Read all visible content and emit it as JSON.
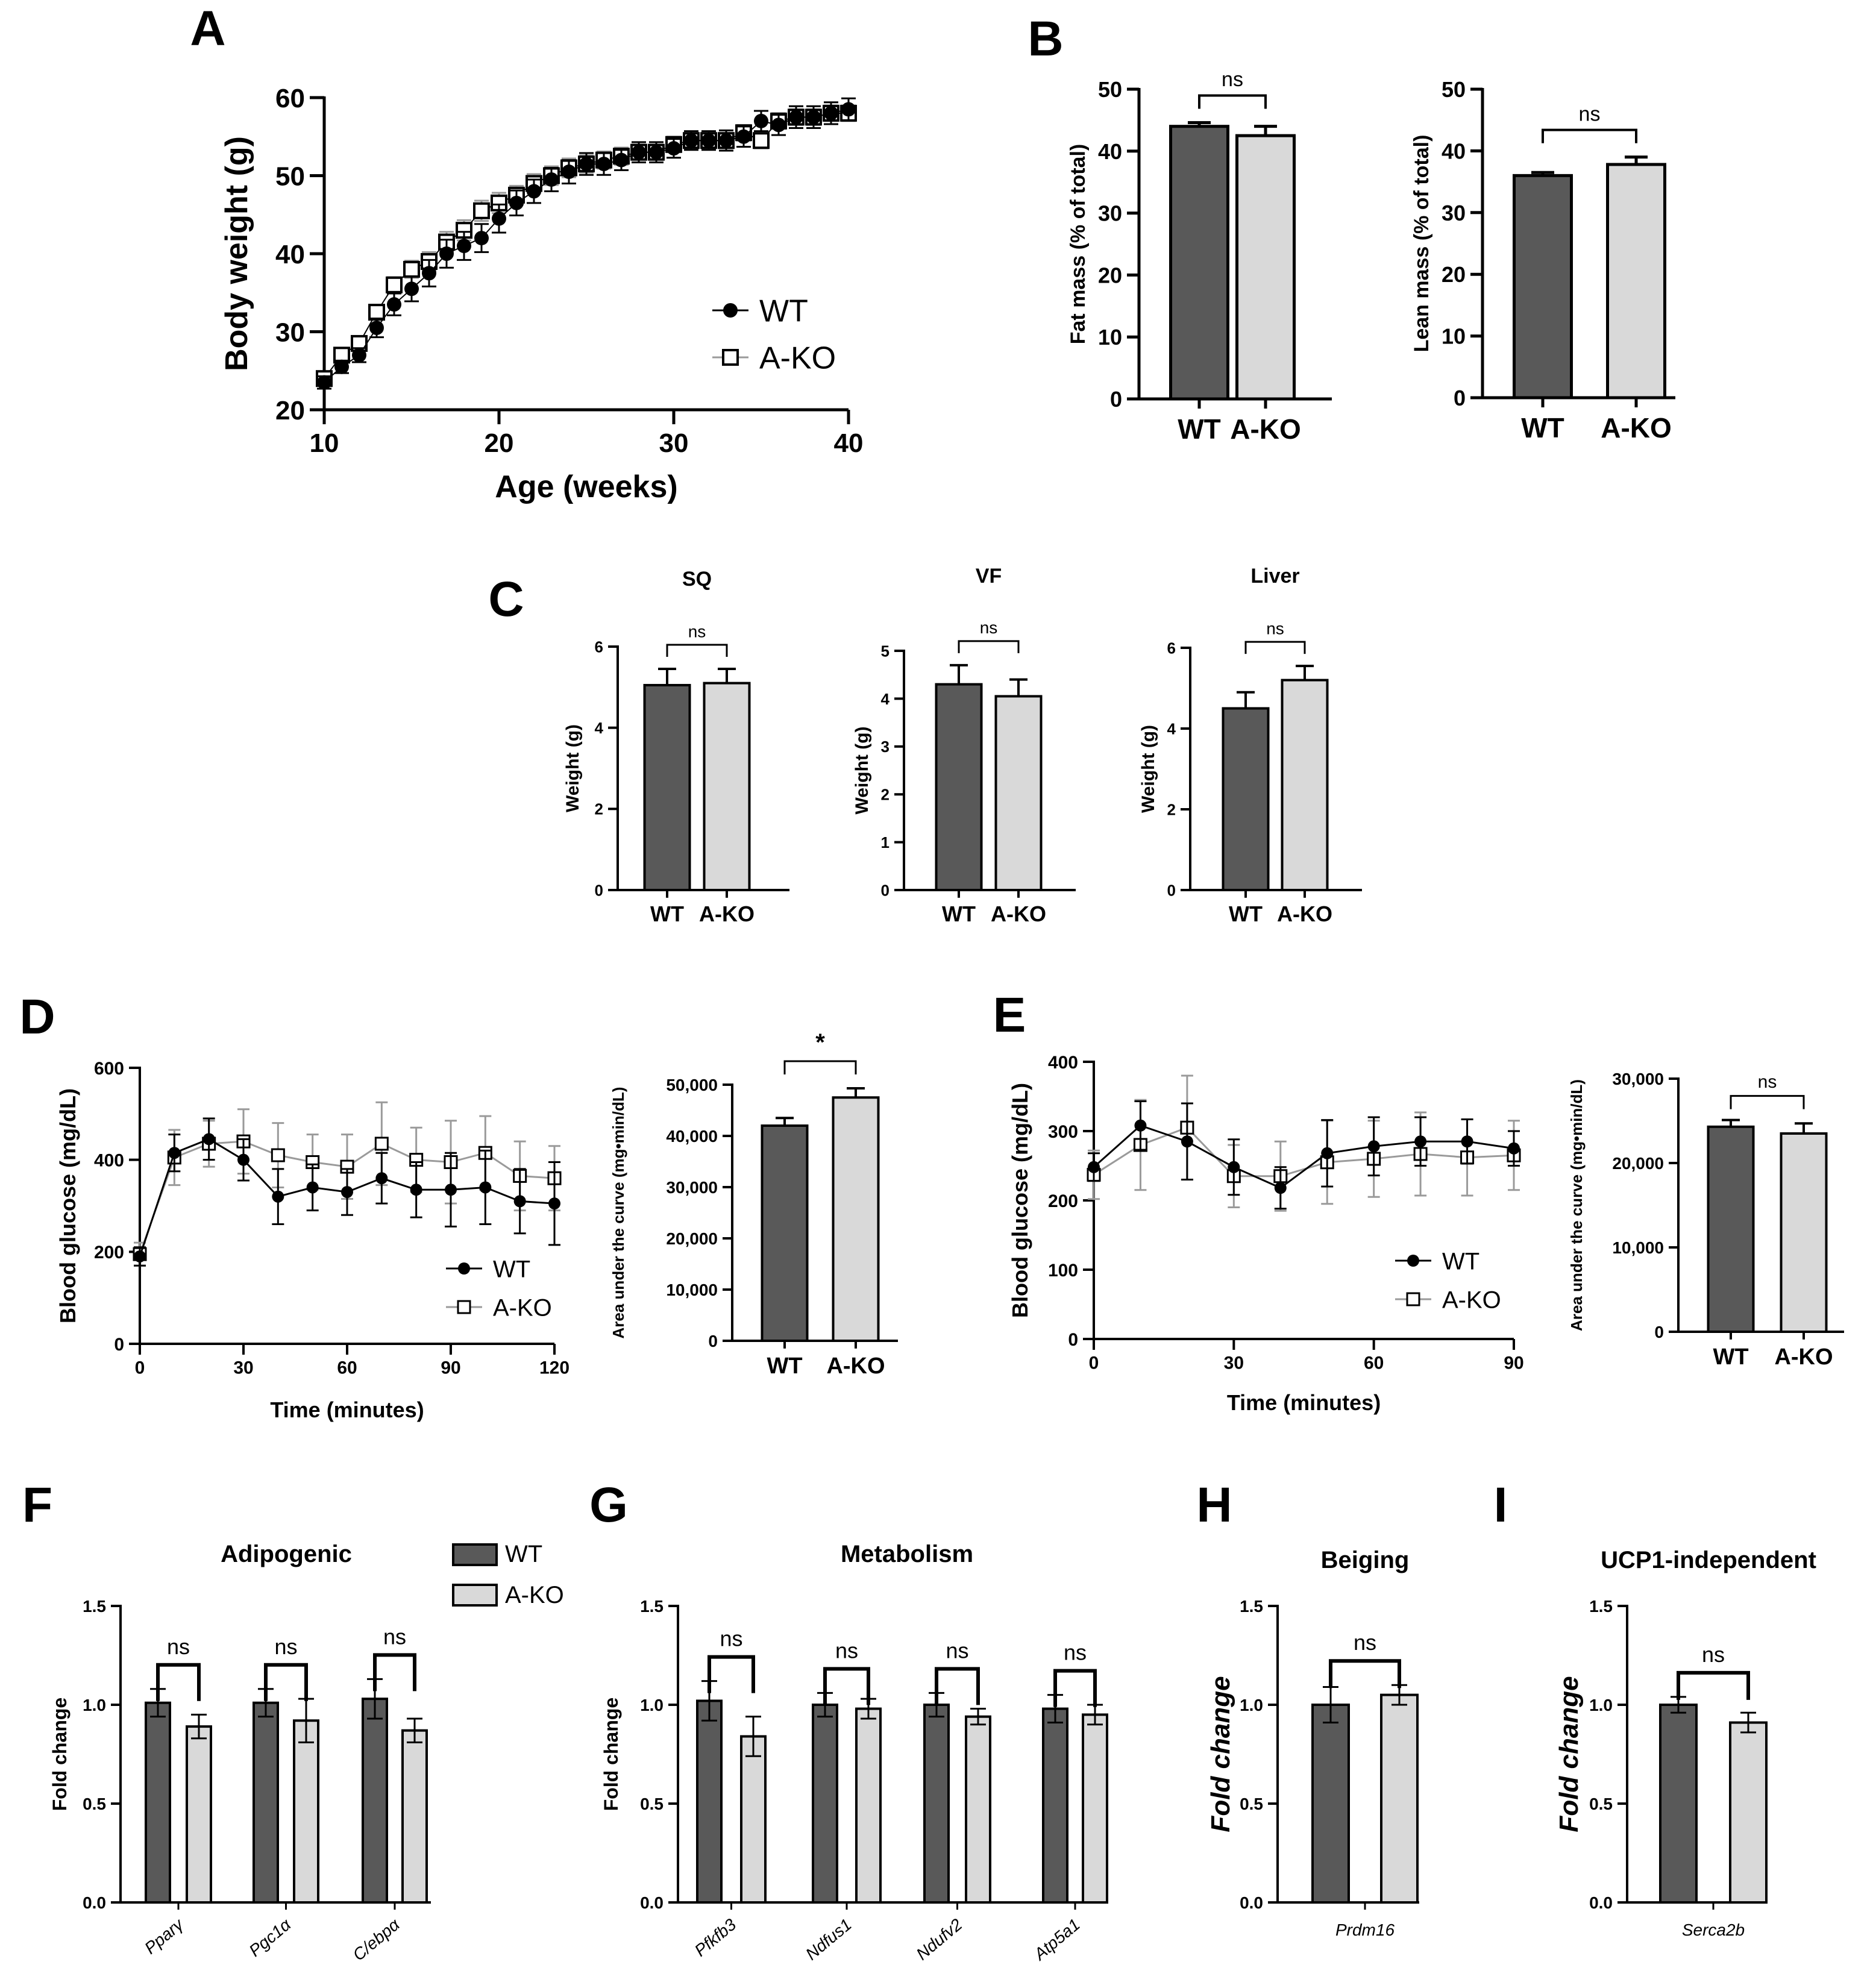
{
  "colors": {
    "wt": "#595959",
    "ako": "#d9d9d9",
    "axis": "#000000",
    "ako_line": "#9a9a9a"
  },
  "labels": {
    "wt": "WT",
    "ako": "A-KO",
    "ns": "ns",
    "star": "*"
  },
  "panels": {
    "A": "A",
    "B": "B",
    "C": "C",
    "D": "D",
    "E": "E",
    "F": "F",
    "G": "G",
    "H": "H",
    "I": "I"
  },
  "chart_data": [
    {
      "id": "A",
      "type": "line",
      "xlabel": "Age (weeks)",
      "ylabel": "Body weight (g)",
      "xlim": [
        10,
        40
      ],
      "ylim": [
        20,
        60
      ],
      "xticks": [
        10,
        20,
        30,
        40
      ],
      "yticks": [
        20,
        30,
        40,
        50,
        60
      ],
      "x": [
        10,
        11,
        12,
        13,
        14,
        15,
        16,
        17,
        18,
        19,
        20,
        21,
        22,
        23,
        24,
        25,
        26,
        27,
        28,
        29,
        30,
        31,
        32,
        33,
        34,
        35,
        36,
        37,
        38,
        39,
        40
      ],
      "series": [
        {
          "name": "WT",
          "values": [
            23.5,
            25.5,
            27,
            30.5,
            33.5,
            35.5,
            37.5,
            40,
            41,
            42,
            44.5,
            46.5,
            48,
            49.5,
            50.5,
            51.5,
            51.5,
            52,
            53,
            53,
            53.5,
            54.5,
            54.5,
            54.5,
            55,
            57,
            56.5,
            57.5,
            57.5,
            58,
            58.5
          ],
          "err": [
            0.8,
            0.8,
            0.9,
            1.2,
            1.4,
            1.6,
            1.7,
            1.8,
            1.8,
            1.8,
            1.8,
            1.6,
            1.5,
            1.5,
            1.5,
            1.4,
            1.4,
            1.3,
            1.3,
            1.3,
            1.2,
            1.2,
            1.2,
            1.3,
            1.3,
            1.3,
            1.3,
            1.4,
            1.4,
            1.4,
            1.4
          ]
        },
        {
          "name": "A-KO",
          "values": [
            24,
            27,
            28.5,
            32.5,
            36,
            38,
            39,
            41.5,
            43,
            45.5,
            46.5,
            47.5,
            49,
            50,
            51,
            51.5,
            52,
            52.5,
            53,
            53,
            54,
            54.5,
            54.5,
            54.5,
            55.5,
            54.5,
            57,
            57.5,
            57.5,
            58,
            58
          ],
          "err": [
            0.6,
            0.7,
            0.8,
            0.9,
            1,
            1.1,
            1.2,
            1.3,
            1.3,
            1.3,
            1.3,
            1.2,
            1.2,
            1.2,
            1.2,
            1.1,
            1.1,
            1.1,
            1,
            1,
            1,
            1,
            1,
            1,
            1,
            1,
            1,
            1,
            1,
            1,
            1
          ]
        }
      ]
    },
    {
      "id": "B1",
      "type": "bar",
      "ylabel": "Fat mass (% of total)",
      "ylim": [
        0,
        50
      ],
      "yticks": [
        0,
        10,
        20,
        30,
        40,
        50
      ],
      "categories": [
        "WT",
        "A-KO"
      ],
      "values": [
        44,
        42.5
      ],
      "err": [
        0.6,
        1.5
      ],
      "sig": "ns"
    },
    {
      "id": "B2",
      "type": "bar",
      "ylabel": "Lean mass (% of total)",
      "ylim": [
        0,
        50
      ],
      "yticks": [
        0,
        10,
        20,
        30,
        40,
        50
      ],
      "categories": [
        "WT",
        "A-KO"
      ],
      "values": [
        36,
        37.8
      ],
      "err": [
        0.5,
        1.2
      ],
      "sig": "ns"
    },
    {
      "id": "C1",
      "type": "bar",
      "title": "SQ",
      "ylabel": "Weight (g)",
      "ylim": [
        0,
        6
      ],
      "yticks": [
        0,
        2,
        4,
        6
      ],
      "categories": [
        "WT",
        "A-KO"
      ],
      "values": [
        5.05,
        5.1
      ],
      "err": [
        0.4,
        0.35
      ],
      "sig": "ns"
    },
    {
      "id": "C2",
      "type": "bar",
      "title": "VF",
      "ylabel": "Weight (g)",
      "ylim": [
        0,
        5
      ],
      "yticks": [
        0,
        1,
        2,
        3,
        4,
        5
      ],
      "categories": [
        "WT",
        "A-KO"
      ],
      "values": [
        4.3,
        4.05
      ],
      "err": [
        0.4,
        0.35
      ],
      "sig": "ns"
    },
    {
      "id": "C3",
      "type": "bar",
      "title": "Liver",
      "ylabel": "Weight (g)",
      "ylim": [
        0,
        6
      ],
      "yticks": [
        0,
        2,
        4,
        6
      ],
      "categories": [
        "WT",
        "A-KO"
      ],
      "values": [
        4.5,
        5.2
      ],
      "err": [
        0.4,
        0.35
      ],
      "sig": "ns"
    },
    {
      "id": "D1",
      "type": "line",
      "xlabel": "Time (minutes)",
      "ylabel": "Blood glucose (mg/dL)",
      "xlim": [
        0,
        120
      ],
      "ylim": [
        0,
        600
      ],
      "xticks": [
        0,
        30,
        60,
        90,
        120
      ],
      "yticks": [
        0,
        200,
        400,
        600
      ],
      "x": [
        0,
        10,
        20,
        30,
        40,
        50,
        60,
        70,
        80,
        90,
        100,
        110,
        120
      ],
      "series": [
        {
          "name": "WT",
          "values": [
            190,
            415,
            445,
            400,
            320,
            340,
            330,
            360,
            335,
            335,
            340,
            310,
            305
          ],
          "err": [
            20,
            40,
            45,
            45,
            60,
            50,
            50,
            55,
            60,
            80,
            80,
            70,
            90
          ]
        },
        {
          "name": "A-KO",
          "values": [
            195,
            405,
            435,
            440,
            410,
            395,
            385,
            435,
            400,
            395,
            415,
            365,
            360
          ],
          "err": [
            25,
            60,
            50,
            70,
            70,
            60,
            70,
            90,
            70,
            90,
            80,
            75,
            70
          ]
        }
      ]
    },
    {
      "id": "D2",
      "type": "bar",
      "ylabel": "Area under the curve (mg•min/dL)",
      "ylim": [
        0,
        50000
      ],
      "yticks": [
        0,
        10000,
        20000,
        30000,
        40000,
        50000
      ],
      "ytick_labels": [
        "0",
        "10,000",
        "20,000",
        "30,000",
        "40,000",
        "50,000"
      ],
      "categories": [
        "WT",
        "A-KO"
      ],
      "values": [
        42000,
        47500
      ],
      "err": [
        1500,
        1800
      ],
      "sig": "*"
    },
    {
      "id": "E1",
      "type": "line",
      "xlabel": "Time (minutes)",
      "ylabel": "Blood glucose (mg/dL)",
      "xlim": [
        0,
        90
      ],
      "ylim": [
        0,
        400
      ],
      "xticks": [
        0,
        30,
        60,
        90
      ],
      "yticks": [
        0,
        100,
        200,
        300,
        400
      ],
      "x": [
        0,
        10,
        20,
        30,
        40,
        50,
        60,
        70,
        80,
        90
      ],
      "series": [
        {
          "name": "WT",
          "values": [
            248,
            308,
            285,
            248,
            218,
            268,
            278,
            285,
            285,
            275
          ],
          "err": [
            20,
            35,
            55,
            40,
            30,
            48,
            42,
            35,
            32,
            25
          ]
        },
        {
          "name": "A-KO",
          "values": [
            237,
            280,
            305,
            235,
            235,
            255,
            260,
            267,
            262,
            265
          ],
          "err": [
            35,
            65,
            75,
            45,
            50,
            60,
            55,
            60,
            55,
            50
          ]
        }
      ]
    },
    {
      "id": "E2",
      "type": "bar",
      "ylabel": "Area under the curve (mg•min/dL)",
      "ylim": [
        0,
        30000
      ],
      "yticks": [
        0,
        10000,
        20000,
        30000
      ],
      "ytick_labels": [
        "0",
        "10,000",
        "20,000",
        "30,000"
      ],
      "categories": [
        "WT",
        "A-KO"
      ],
      "values": [
        24300,
        23500
      ],
      "err": [
        800,
        1200
      ],
      "sig": "ns"
    },
    {
      "id": "F",
      "type": "bar",
      "title": "Adipogenic",
      "ylabel": "Fold change",
      "ylim": [
        0,
        1.5
      ],
      "yticks": [
        0,
        0.5,
        1.0,
        1.5
      ],
      "ytick_labels": [
        "0.0",
        "0.5",
        "1.0",
        "1.5"
      ],
      "categories": [
        "Pparγ",
        "Pgc1α",
        "C/ebpα"
      ],
      "series": [
        {
          "name": "WT",
          "values": [
            1.01,
            1.01,
            1.03
          ],
          "err": [
            0.07,
            0.07,
            0.1
          ]
        },
        {
          "name": "A-KO",
          "values": [
            0.89,
            0.92,
            0.87
          ],
          "err": [
            0.06,
            0.11,
            0.06
          ]
        }
      ],
      "sig": [
        "ns",
        "ns",
        "ns"
      ]
    },
    {
      "id": "G",
      "type": "bar",
      "title": "Metabolism",
      "ylabel": "Fold change",
      "ylim": [
        0,
        1.5
      ],
      "yticks": [
        0,
        0.5,
        1.0,
        1.5
      ],
      "ytick_labels": [
        "0.0",
        "0.5",
        "1.0",
        "1.5"
      ],
      "categories": [
        "Pfkfb3",
        "Ndfus1",
        "Ndufv2",
        "Atp5a1"
      ],
      "series": [
        {
          "name": "WT",
          "values": [
            1.02,
            1.0,
            1.0,
            0.98
          ],
          "err": [
            0.1,
            0.06,
            0.06,
            0.07
          ]
        },
        {
          "name": "A-KO",
          "values": [
            0.84,
            0.98,
            0.94,
            0.95
          ],
          "err": [
            0.1,
            0.05,
            0.04,
            0.05
          ]
        }
      ],
      "sig": [
        "ns",
        "ns",
        "ns",
        "ns"
      ]
    },
    {
      "id": "H",
      "type": "bar",
      "title": "Beiging",
      "ylabel": "Fold change",
      "ylim": [
        0,
        1.5
      ],
      "yticks": [
        0,
        0.5,
        1.0,
        1.5
      ],
      "ytick_labels": [
        "0.0",
        "0.5",
        "1.0",
        "1.5"
      ],
      "categories": [
        "Prdm16"
      ],
      "series": [
        {
          "name": "WT",
          "values": [
            1.0
          ],
          "err": [
            0.09
          ]
        },
        {
          "name": "A-KO",
          "values": [
            1.05
          ],
          "err": [
            0.05
          ]
        }
      ],
      "sig": [
        "ns"
      ]
    },
    {
      "id": "I",
      "type": "bar",
      "title": "UCP1-independent",
      "ylabel": "Fold change",
      "ylim": [
        0,
        1.5
      ],
      "yticks": [
        0,
        0.5,
        1.0,
        1.5
      ],
      "ytick_labels": [
        "0.0",
        "0.5",
        "1.0",
        "1.5"
      ],
      "categories": [
        "Serca2b"
      ],
      "series": [
        {
          "name": "WT",
          "values": [
            1.0
          ],
          "err": [
            0.04
          ]
        },
        {
          "name": "A-KO",
          "values": [
            0.91
          ],
          "err": [
            0.05
          ]
        }
      ],
      "sig": [
        "ns"
      ]
    }
  ]
}
